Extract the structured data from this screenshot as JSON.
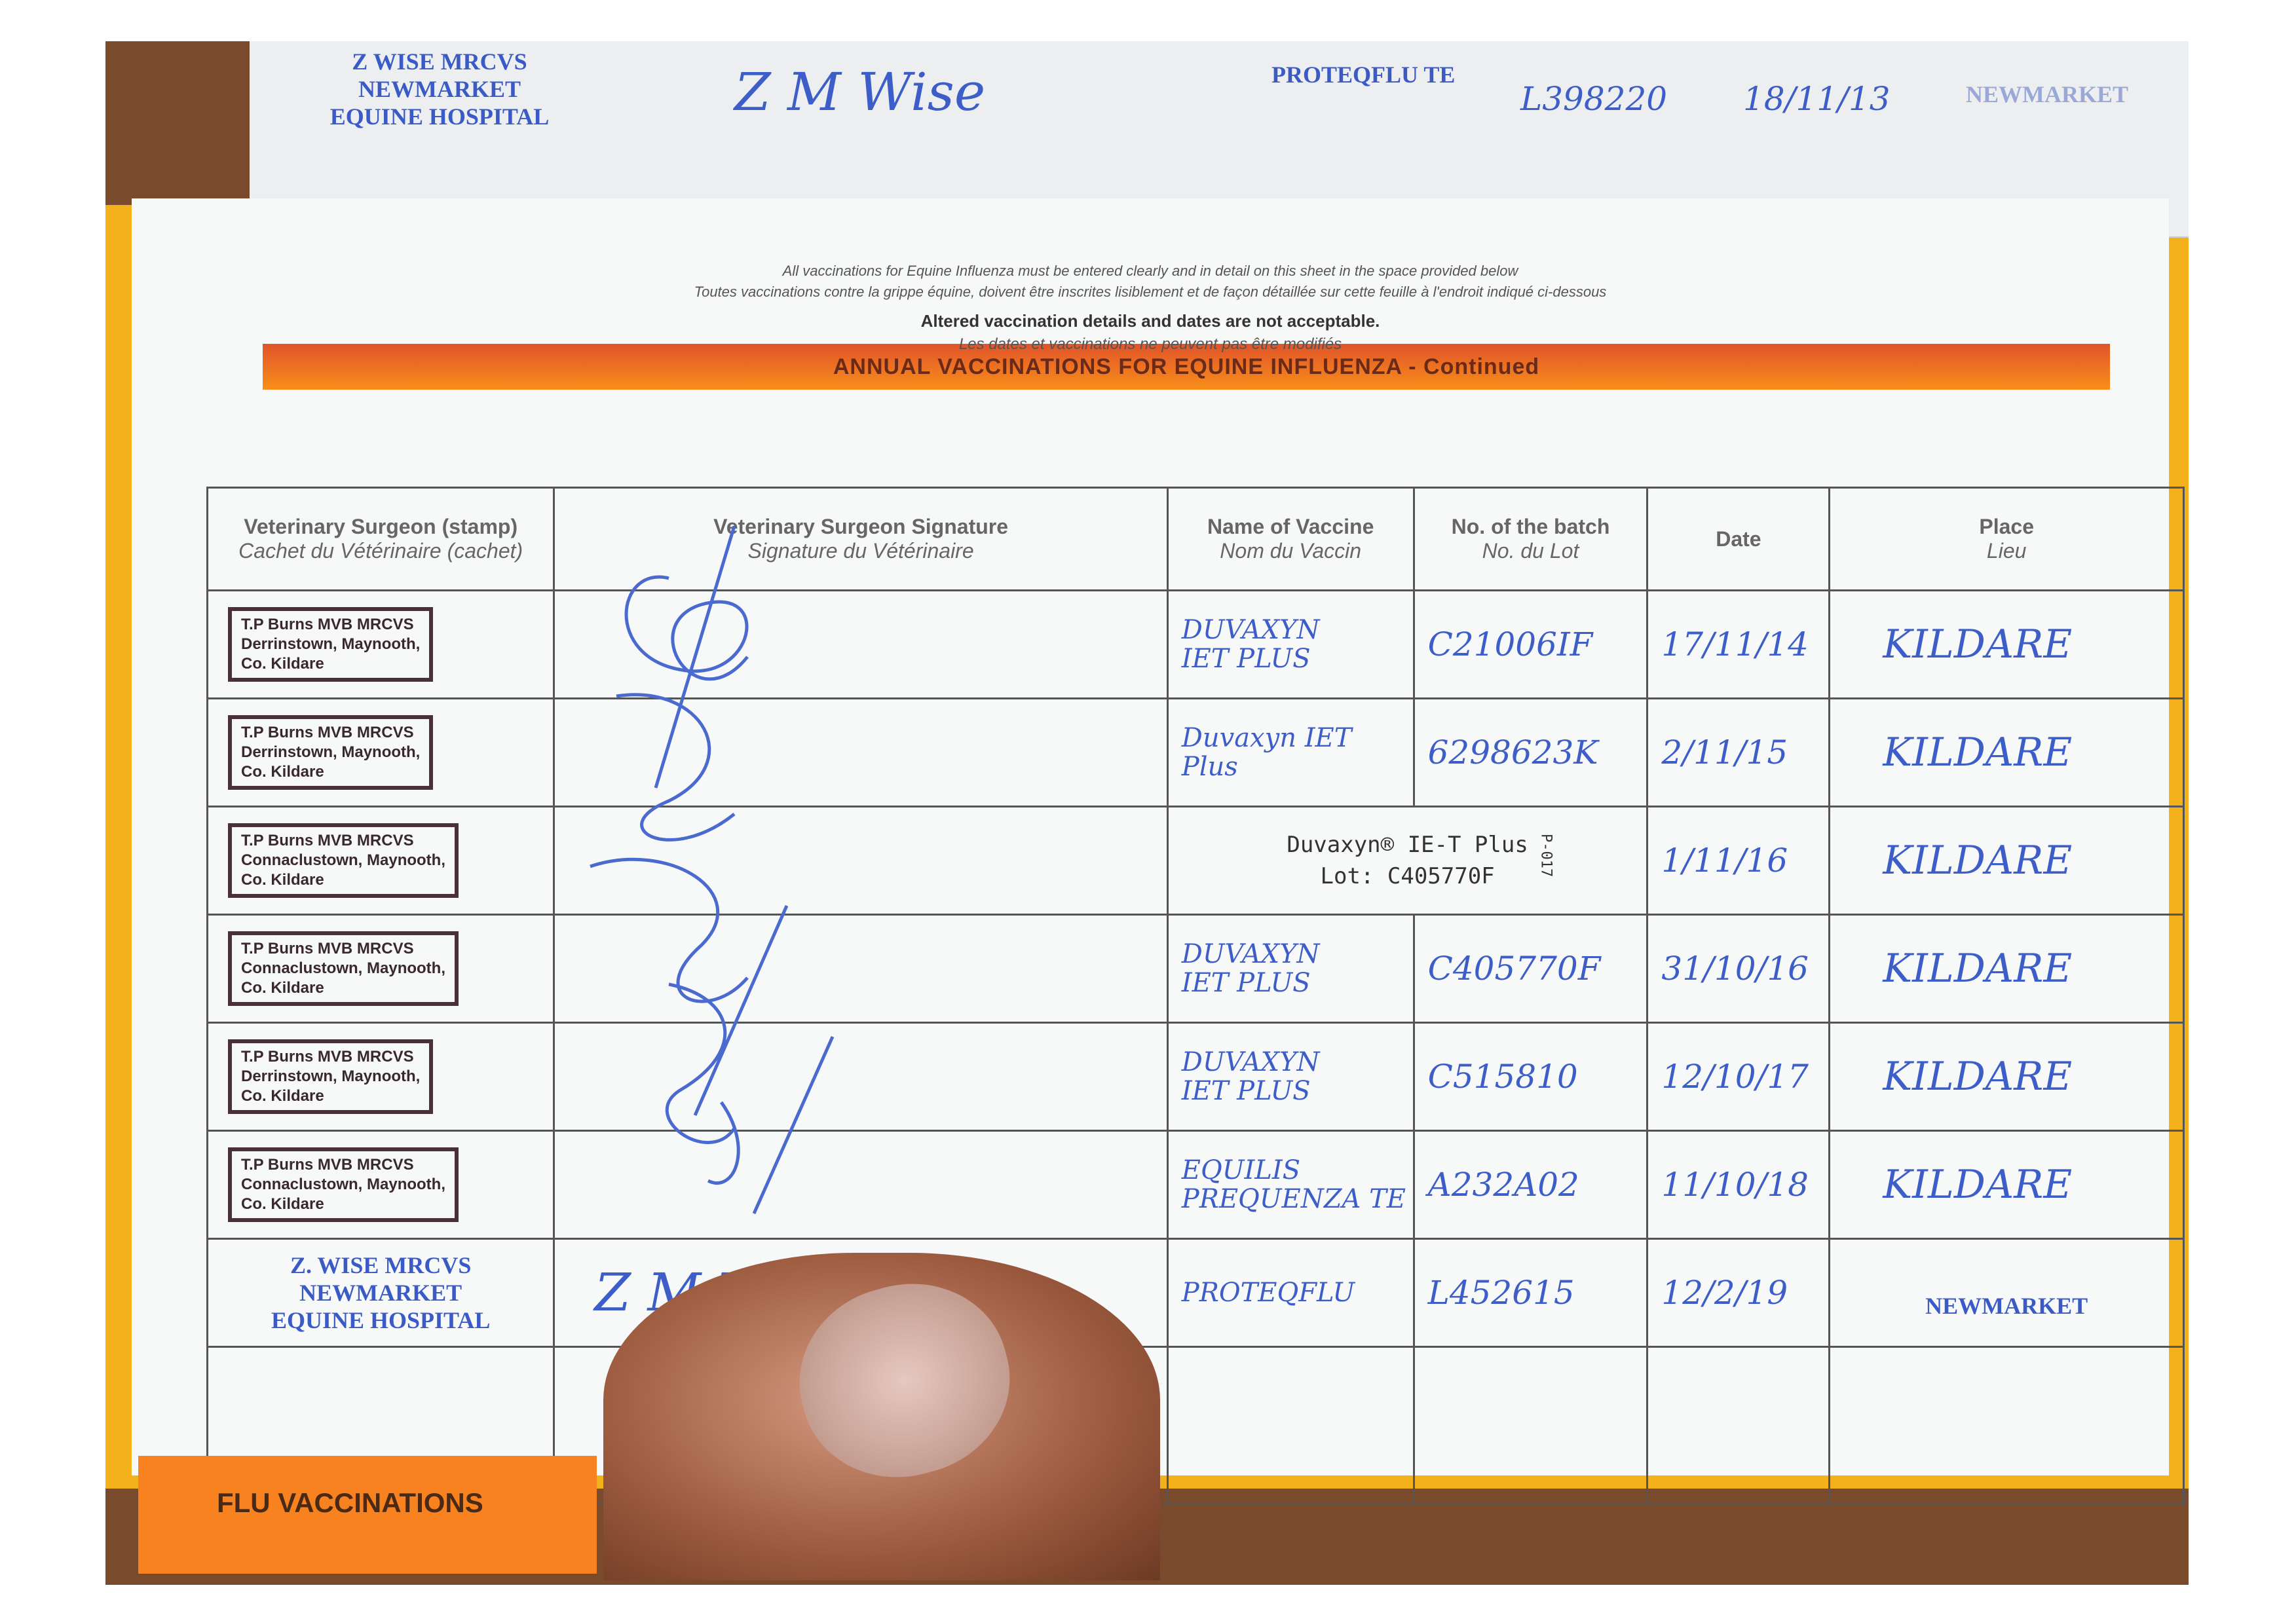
{
  "previous_entry": {
    "stamp": [
      "Z WISE MRCVS",
      "NEWMARKET",
      "EQUINE HOSPITAL"
    ],
    "signature": "Z M Wise",
    "vaccine": "PROTEQFLU TE",
    "batch": "L398220",
    "date": "18/11/13",
    "place": "NEWMARKET"
  },
  "band_title": "ANNUAL VACCINATIONS FOR EQUINE INFLUENZA - Continued",
  "instructions": {
    "en": "All vaccinations for Equine Influenza must be entered clearly and in detail on this sheet in the space provided below",
    "fr": "Toutes vaccinations contre la grippe équine, doivent être inscrites lisiblement et de façon détaillée sur cette feuille à l'endroit indiqué ci-dessous",
    "warning_en": "Altered vaccination details and dates are not acceptable.",
    "warning_fr": "Les dates et vaccinations ne peuvent pas être modifiés"
  },
  "columns": [
    {
      "en": "Veterinary Surgeon (stamp)",
      "fr": "Cachet du Vétérinaire (cachet)"
    },
    {
      "en": "Veterinary Surgeon Signature",
      "fr": "Signature du Vétérinaire"
    },
    {
      "en": "Name of Vaccine",
      "fr": "Nom du Vaccin"
    },
    {
      "en": "No. of the batch",
      "fr": "No. du Lot"
    },
    {
      "en": "Date",
      "fr": ""
    },
    {
      "en": "Place",
      "fr": "Lieu"
    }
  ],
  "rows": [
    {
      "stamp": [
        "T.P Burns MVB MRCVS",
        "Derrinstown, Maynooth,",
        "Co. Kildare"
      ],
      "vaccine": [
        "DUVAXYN",
        "IET PLUS"
      ],
      "batch": "C21006IF",
      "date": "17/11/14",
      "place": "KILDARE"
    },
    {
      "stamp": [
        "T.P Burns MVB MRCVS",
        "Derrinstown, Maynooth,",
        "Co. Kildare"
      ],
      "vaccine": [
        "Duvaxyn IET",
        "Plus"
      ],
      "batch": "6298623K",
      "date": "2/11/15",
      "place": "KILDARE"
    },
    {
      "stamp": [
        "T.P Burns MVB MRCVS",
        "Connaclustown, Maynooth,",
        "Co. Kildare"
      ],
      "sticker": [
        "Duvaxyn® IE-T Plus",
        "Lot: C405770F"
      ],
      "sticker_code": "P-017",
      "date": "1/11/16",
      "place": "KILDARE"
    },
    {
      "stamp": [
        "T.P Burns MVB MRCVS",
        "Connaclustown, Maynooth,",
        "Co. Kildare"
      ],
      "vaccine": [
        "DUVAXYN",
        "IET PLUS"
      ],
      "batch": "C405770F",
      "date": "31/10/16",
      "place": "KILDARE"
    },
    {
      "stamp": [
        "T.P Burns MVB MRCVS",
        "Derrinstown, Maynooth,",
        "Co. Kildare"
      ],
      "vaccine": [
        "DUVAXYN",
        "IET PLUS"
      ],
      "batch": "C515810",
      "date": "12/10/17",
      "place": "KILDARE"
    },
    {
      "stamp": [
        "T.P Burns MVB MRCVS",
        "Connaclustown, Maynooth,",
        "Co. Kildare"
      ],
      "vaccine": [
        "EQUILIS",
        "PREQUENZA TE"
      ],
      "batch": "A232A02",
      "date": "11/10/18",
      "place": "KILDARE"
    },
    {
      "blue_stamp": [
        "Z. WISE MRCVS",
        "NEWMARKET",
        "EQUINE HOSPITAL"
      ],
      "signature": "Z M Wise",
      "vaccine": [
        "PROTEQFLU"
      ],
      "batch": "L452615",
      "date": "12/2/19",
      "place_stamp": "NEWMARKET"
    }
  ],
  "tab_label": "FLU VACCINATIONS",
  "colors": {
    "ink_blue": "#3d5ec8",
    "band_orange": "#f88e1a",
    "stamp_ink": "#4a3038"
  }
}
